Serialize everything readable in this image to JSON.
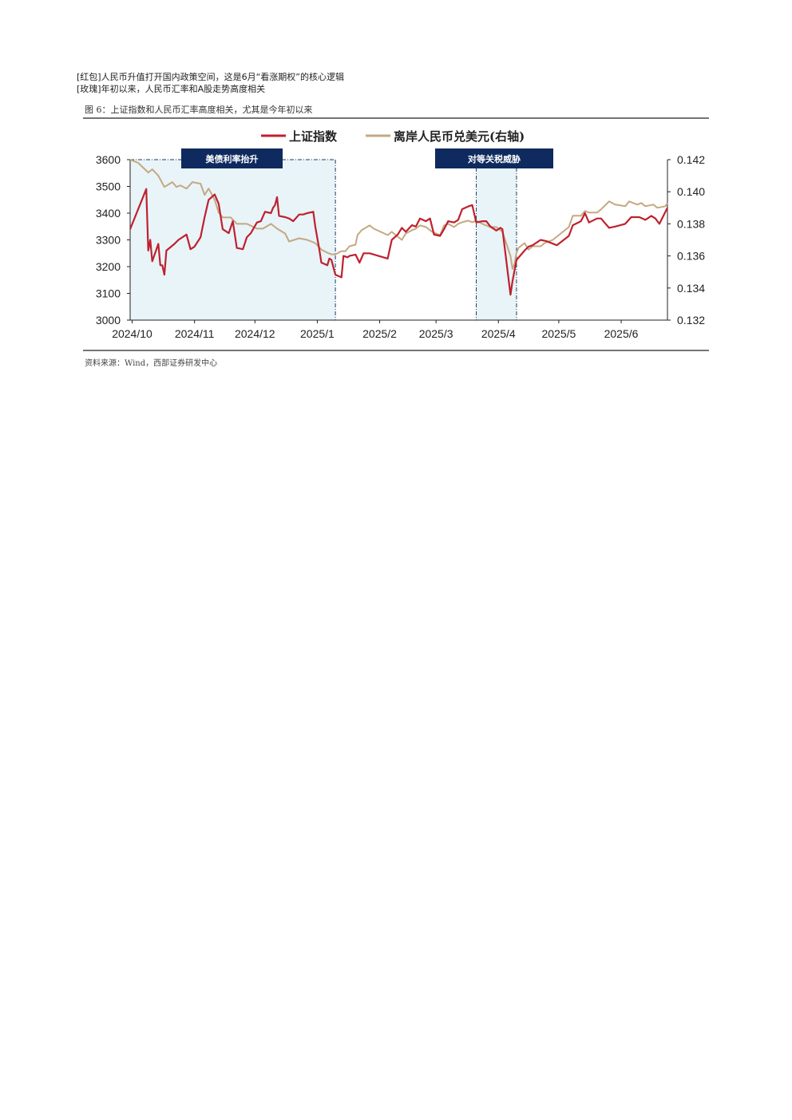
{
  "header": {
    "line1": "[红包]人民币升值打开国内政策空间，这是6月“看涨期权”的核心逻辑",
    "line2": "[玫瑰]年初以来，人民币汇率和A股走势高度相关"
  },
  "figure": {
    "title": "图 6：上证指数和人民币汇率高度相关，尤其是今年初以来",
    "source": "资料来源：Wind，西部证券研发中心"
  },
  "colors": {
    "series1": "#c0202e",
    "series2": "#c4a882",
    "band_fill": "#e8f4f8",
    "band_border": "#1f3a5f",
    "label_bg": "#0f2a5e"
  },
  "chart_data": {
    "type": "line",
    "x_ticks": [
      "2024/10",
      "2024/11",
      "2024/12",
      "2025/1",
      "2025/2",
      "2025/3",
      "2025/4",
      "2025/5",
      "2025/6"
    ],
    "y_left_ticks": [
      "3600",
      "3500",
      "3400",
      "3300",
      "3200",
      "3100",
      "3000"
    ],
    "y_right_ticks": [
      "0.142",
      "0.140",
      "0.138",
      "0.136",
      "0.134",
      "0.132"
    ],
    "ylim_left": [
      3000,
      3600
    ],
    "ylim_right": [
      0.132,
      0.142
    ],
    "legend_position": "top-center",
    "grid": false,
    "annotations": [
      {
        "label": "美债利率抬升",
        "start": "2024-09-30",
        "end": "2025-01-10"
      },
      {
        "label": "对等关税威胁",
        "start": "2025-03-21",
        "end": "2025-04-10"
      }
    ],
    "series": [
      {
        "name": "上证指数",
        "axis": "left",
        "points": [
          [
            "2024-09-30",
            3340
          ],
          [
            "2024-10-08",
            3490
          ],
          [
            "2024-10-09",
            3260
          ],
          [
            "2024-10-10",
            3300
          ],
          [
            "2024-10-11",
            3220
          ],
          [
            "2024-10-14",
            3285
          ],
          [
            "2024-10-15",
            3205
          ],
          [
            "2024-10-16",
            3205
          ],
          [
            "2024-10-17",
            3170
          ],
          [
            "2024-10-18",
            3260
          ],
          [
            "2024-10-22",
            3285
          ],
          [
            "2024-10-24",
            3300
          ],
          [
            "2024-10-28",
            3320
          ],
          [
            "2024-10-30",
            3265
          ],
          [
            "2024-11-01",
            3275
          ],
          [
            "2024-11-04",
            3310
          ],
          [
            "2024-11-06",
            3385
          ],
          [
            "2024-11-08",
            3450
          ],
          [
            "2024-11-11",
            3470
          ],
          [
            "2024-11-13",
            3435
          ],
          [
            "2024-11-15",
            3340
          ],
          [
            "2024-11-18",
            3325
          ],
          [
            "2024-11-20",
            3370
          ],
          [
            "2024-11-22",
            3270
          ],
          [
            "2024-11-25",
            3265
          ],
          [
            "2024-11-27",
            3310
          ],
          [
            "2024-11-29",
            3325
          ],
          [
            "2024-12-02",
            3365
          ],
          [
            "2024-12-04",
            3370
          ],
          [
            "2024-12-06",
            3405
          ],
          [
            "2024-12-09",
            3400
          ],
          [
            "2024-12-10",
            3420
          ],
          [
            "2024-12-11",
            3430
          ],
          [
            "2024-12-12",
            3460
          ],
          [
            "2024-12-13",
            3390
          ],
          [
            "2024-12-16",
            3385
          ],
          [
            "2024-12-18",
            3380
          ],
          [
            "2024-12-20",
            3370
          ],
          [
            "2024-12-23",
            3395
          ],
          [
            "2024-12-25",
            3395
          ],
          [
            "2024-12-27",
            3400
          ],
          [
            "2024-12-30",
            3405
          ],
          [
            "2024-12-31",
            3350
          ],
          [
            "2025-01-02",
            3265
          ],
          [
            "2025-01-03",
            3215
          ],
          [
            "2025-01-06",
            3205
          ],
          [
            "2025-01-07",
            3230
          ],
          [
            "2025-01-08",
            3225
          ],
          [
            "2025-01-10",
            3170
          ],
          [
            "2025-01-13",
            3160
          ],
          [
            "2025-01-14",
            3240
          ],
          [
            "2025-01-16",
            3235
          ],
          [
            "2025-01-17",
            3240
          ],
          [
            "2025-01-20",
            3245
          ],
          [
            "2025-01-22",
            3215
          ],
          [
            "2025-01-24",
            3250
          ],
          [
            "2025-01-27",
            3250
          ],
          [
            "2025-02-05",
            3230
          ],
          [
            "2025-02-07",
            3300
          ],
          [
            "2025-02-10",
            3320
          ],
          [
            "2025-02-12",
            3345
          ],
          [
            "2025-02-14",
            3330
          ],
          [
            "2025-02-17",
            3355
          ],
          [
            "2025-02-19",
            3350
          ],
          [
            "2025-02-21",
            3380
          ],
          [
            "2025-02-24",
            3370
          ],
          [
            "2025-02-26",
            3380
          ],
          [
            "2025-02-28",
            3320
          ],
          [
            "2025-03-03",
            3315
          ],
          [
            "2025-03-05",
            3340
          ],
          [
            "2025-03-07",
            3370
          ],
          [
            "2025-03-10",
            3365
          ],
          [
            "2025-03-12",
            3375
          ],
          [
            "2025-03-14",
            3415
          ],
          [
            "2025-03-17",
            3425
          ],
          [
            "2025-03-19",
            3430
          ],
          [
            "2025-03-21",
            3365
          ],
          [
            "2025-03-24",
            3370
          ],
          [
            "2025-03-26",
            3370
          ],
          [
            "2025-03-28",
            3350
          ],
          [
            "2025-03-31",
            3335
          ],
          [
            "2025-04-02",
            3345
          ],
          [
            "2025-04-03",
            3340
          ],
          [
            "2025-04-07",
            3095
          ],
          [
            "2025-04-08",
            3145
          ],
          [
            "2025-04-09",
            3185
          ],
          [
            "2025-04-10",
            3225
          ],
          [
            "2025-04-14",
            3260
          ],
          [
            "2025-04-16",
            3275
          ],
          [
            "2025-04-18",
            3280
          ],
          [
            "2025-04-22",
            3300
          ],
          [
            "2025-04-25",
            3295
          ],
          [
            "2025-04-30",
            3280
          ],
          [
            "2025-05-06",
            3315
          ],
          [
            "2025-05-08",
            3355
          ],
          [
            "2025-05-12",
            3370
          ],
          [
            "2025-05-14",
            3400
          ],
          [
            "2025-05-16",
            3365
          ],
          [
            "2025-05-20",
            3380
          ],
          [
            "2025-05-22",
            3380
          ],
          [
            "2025-05-26",
            3345
          ],
          [
            "2025-05-29",
            3350
          ],
          [
            "2025-06-03",
            3360
          ],
          [
            "2025-06-06",
            3385
          ],
          [
            "2025-06-10",
            3385
          ],
          [
            "2025-06-13",
            3375
          ],
          [
            "2025-06-16",
            3390
          ],
          [
            "2025-06-18",
            3380
          ],
          [
            "2025-06-20",
            3360
          ],
          [
            "2025-06-24",
            3420
          ]
        ]
      },
      {
        "name": "离岸人民币兑美元(右轴)",
        "axis": "right",
        "points": [
          [
            "2024-09-30",
            0.142
          ],
          [
            "2024-10-04",
            0.1418
          ],
          [
            "2024-10-09",
            0.1412
          ],
          [
            "2024-10-11",
            0.1414
          ],
          [
            "2024-10-14",
            0.141
          ],
          [
            "2024-10-17",
            0.1403
          ],
          [
            "2024-10-21",
            0.1406
          ],
          [
            "2024-10-23",
            0.1403
          ],
          [
            "2024-10-25",
            0.1404
          ],
          [
            "2024-10-28",
            0.1402
          ],
          [
            "2024-10-31",
            0.1406
          ],
          [
            "2024-11-04",
            0.1405
          ],
          [
            "2024-11-06",
            0.1398
          ],
          [
            "2024-11-08",
            0.1402
          ],
          [
            "2024-11-11",
            0.1395
          ],
          [
            "2024-11-13",
            0.1387
          ],
          [
            "2024-11-15",
            0.1384
          ],
          [
            "2024-11-19",
            0.1384
          ],
          [
            "2024-11-22",
            0.138
          ],
          [
            "2024-11-27",
            0.138
          ],
          [
            "2024-12-02",
            0.1377
          ],
          [
            "2024-12-05",
            0.1377
          ],
          [
            "2024-12-09",
            0.138
          ],
          [
            "2024-12-12",
            0.1377
          ],
          [
            "2024-12-16",
            0.1374
          ],
          [
            "2024-12-18",
            0.1369
          ],
          [
            "2024-12-23",
            0.1371
          ],
          [
            "2024-12-27",
            0.137
          ],
          [
            "2024-12-31",
            0.1368
          ],
          [
            "2025-01-03",
            0.1364
          ],
          [
            "2025-01-06",
            0.1362
          ],
          [
            "2025-01-08",
            0.1361
          ],
          [
            "2025-01-10",
            0.1361
          ],
          [
            "2025-01-13",
            0.1363
          ],
          [
            "2025-01-15",
            0.1363
          ],
          [
            "2025-01-17",
            0.1366
          ],
          [
            "2025-01-20",
            0.1367
          ],
          [
            "2025-01-21",
            0.1373
          ],
          [
            "2025-01-23",
            0.1376
          ],
          [
            "2025-01-27",
            0.1379
          ],
          [
            "2025-01-29",
            0.1377
          ],
          [
            "2025-02-05",
            0.1373
          ],
          [
            "2025-02-07",
            0.1375
          ],
          [
            "2025-02-10",
            0.1372
          ],
          [
            "2025-02-12",
            0.137
          ],
          [
            "2025-02-14",
            0.1374
          ],
          [
            "2025-02-17",
            0.1376
          ],
          [
            "2025-02-19",
            0.1377
          ],
          [
            "2025-02-21",
            0.1379
          ],
          [
            "2025-02-24",
            0.1378
          ],
          [
            "2025-02-27",
            0.1375
          ],
          [
            "2025-03-03",
            0.1373
          ],
          [
            "2025-03-05",
            0.1379
          ],
          [
            "2025-03-07",
            0.138
          ],
          [
            "2025-03-10",
            0.1378
          ],
          [
            "2025-03-12",
            0.138
          ],
          [
            "2025-03-14",
            0.1381
          ],
          [
            "2025-03-17",
            0.1382
          ],
          [
            "2025-03-19",
            0.1381
          ],
          [
            "2025-03-21",
            0.1382
          ],
          [
            "2025-03-24",
            0.138
          ],
          [
            "2025-03-26",
            0.1379
          ],
          [
            "2025-03-28",
            0.1378
          ],
          [
            "2025-03-31",
            0.1378
          ],
          [
            "2025-04-02",
            0.1376
          ],
          [
            "2025-04-03",
            0.1375
          ],
          [
            "2025-04-07",
            0.136
          ],
          [
            "2025-04-08",
            0.1352
          ],
          [
            "2025-04-09",
            0.1355
          ],
          [
            "2025-04-10",
            0.1362
          ],
          [
            "2025-04-11",
            0.1365
          ],
          [
            "2025-04-14",
            0.1368
          ],
          [
            "2025-04-16",
            0.1364
          ],
          [
            "2025-04-18",
            0.1366
          ],
          [
            "2025-04-22",
            0.1366
          ],
          [
            "2025-04-24",
            0.1368
          ],
          [
            "2025-04-28",
            0.137
          ],
          [
            "2025-05-02",
            0.1374
          ],
          [
            "2025-05-06",
            0.1378
          ],
          [
            "2025-05-08",
            0.1385
          ],
          [
            "2025-05-12",
            0.1385
          ],
          [
            "2025-05-14",
            0.1388
          ],
          [
            "2025-05-16",
            0.1387
          ],
          [
            "2025-05-20",
            0.1387
          ],
          [
            "2025-05-22",
            0.1389
          ],
          [
            "2025-05-26",
            0.1394
          ],
          [
            "2025-05-29",
            0.1392
          ],
          [
            "2025-06-03",
            0.1391
          ],
          [
            "2025-06-05",
            0.1394
          ],
          [
            "2025-06-09",
            0.1392
          ],
          [
            "2025-06-11",
            0.1393
          ],
          [
            "2025-06-13",
            0.1391
          ],
          [
            "2025-06-17",
            0.1392
          ],
          [
            "2025-06-19",
            0.139
          ],
          [
            "2025-06-23",
            0.1391
          ],
          [
            "2025-06-24",
            0.1393
          ]
        ]
      }
    ]
  }
}
